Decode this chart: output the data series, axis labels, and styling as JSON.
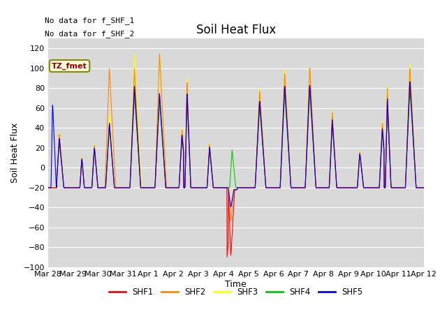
{
  "title": "Soil Heat Flux",
  "ylabel": "Soil Heat Flux",
  "xlabel": "Time",
  "annotation_line1": "No data for f_SHF_1",
  "annotation_line2": "No data for f_SHF_2",
  "legend_label": "TZ_fmet",
  "series_colors": [
    "#ff0000",
    "#ff8800",
    "#ffff00",
    "#00cc00",
    "#0000ff"
  ],
  "series_names": [
    "SHF1",
    "SHF2",
    "SHF3",
    "SHF4",
    "SHF5"
  ],
  "ylim": [
    -100,
    130
  ],
  "yticks": [
    -100,
    -80,
    -60,
    -40,
    -20,
    0,
    20,
    40,
    60,
    80,
    100,
    120
  ],
  "plot_bg_color": "#d9d9d9",
  "grid_color": "#ffffff",
  "title_fontsize": 12,
  "axis_fontsize": 9,
  "tick_fontsize": 8
}
